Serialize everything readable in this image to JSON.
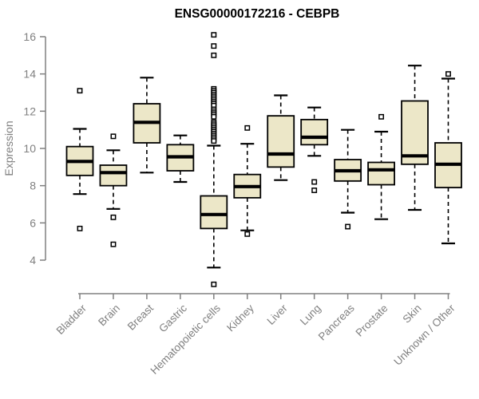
{
  "title": "ENSG00000172216 - CEBPB",
  "colors": {
    "box_fill": "#ece7c8",
    "box_stroke": "#000000",
    "median": "#000000",
    "axis": "#808080",
    "title": "#000000",
    "background": "#ffffff"
  },
  "chart_data": {
    "type": "boxplot",
    "title": "ENSG00000172216 - CEBPB",
    "xlabel": "",
    "ylabel": "Expression",
    "ylim": [
      4,
      16
    ],
    "yticks": [
      4,
      6,
      8,
      10,
      12,
      14,
      16
    ],
    "grid": false,
    "legend": "none",
    "categories": [
      "Bladder",
      "Brain",
      "Breast",
      "Gastric",
      "Hematopoietic cells",
      "Kidney",
      "Liver",
      "Lung",
      "Pancreas",
      "Prostate",
      "Skin",
      "Unknown / Other"
    ],
    "boxes": [
      {
        "label": "Bladder",
        "whisker_low": 7.55,
        "q1": 8.55,
        "median": 9.3,
        "q3": 10.1,
        "whisker_high": 11.05,
        "outliers": [
          13.1,
          5.7
        ]
      },
      {
        "label": "Brain",
        "whisker_low": 6.75,
        "q1": 8.0,
        "median": 8.7,
        "q3": 9.1,
        "whisker_high": 9.9,
        "outliers": [
          10.65,
          6.3,
          4.85
        ]
      },
      {
        "label": "Breast",
        "whisker_low": 8.7,
        "q1": 10.3,
        "median": 11.4,
        "q3": 12.4,
        "whisker_high": 13.8,
        "outliers": []
      },
      {
        "label": "Gastric",
        "whisker_low": 8.2,
        "q1": 8.8,
        "median": 9.55,
        "q3": 10.2,
        "whisker_high": 10.7,
        "outliers": []
      },
      {
        "label": "Hematopoietic cells",
        "whisker_low": 3.6,
        "q1": 5.7,
        "median": 6.45,
        "q3": 7.45,
        "whisker_high": 10.15,
        "outliers": [
          16.1,
          15.5,
          15.0,
          13.2,
          13.1,
          13.0,
          12.9,
          12.8,
          12.7,
          12.6,
          12.5,
          12.4,
          12.3,
          12.1,
          12.0,
          11.9,
          11.8,
          11.7,
          11.4,
          11.3,
          11.2,
          11.1,
          11.0,
          10.9,
          10.8,
          10.7,
          10.6,
          10.5,
          10.4,
          2.7
        ]
      },
      {
        "label": "Kidney",
        "whisker_low": 5.6,
        "q1": 7.35,
        "median": 7.95,
        "q3": 8.6,
        "whisker_high": 10.25,
        "outliers": [
          11.1,
          5.4
        ]
      },
      {
        "label": "Liver",
        "whisker_low": 8.3,
        "q1": 9.0,
        "median": 9.7,
        "q3": 11.75,
        "whisker_high": 12.85,
        "outliers": []
      },
      {
        "label": "Lung",
        "whisker_low": 9.6,
        "q1": 10.2,
        "median": 10.6,
        "q3": 11.55,
        "whisker_high": 12.2,
        "outliers": [
          8.2,
          7.75
        ]
      },
      {
        "label": "Pancreas",
        "whisker_low": 6.55,
        "q1": 8.25,
        "median": 8.8,
        "q3": 9.4,
        "whisker_high": 11.0,
        "outliers": [
          5.8
        ]
      },
      {
        "label": "Prostate",
        "whisker_low": 6.2,
        "q1": 8.05,
        "median": 8.85,
        "q3": 9.25,
        "whisker_high": 10.9,
        "outliers": [
          11.7
        ]
      },
      {
        "label": "Skin",
        "whisker_low": 6.7,
        "q1": 9.15,
        "median": 9.6,
        "q3": 12.55,
        "whisker_high": 14.45,
        "outliers": []
      },
      {
        "label": "Unknown / Other",
        "whisker_low": 4.9,
        "q1": 7.9,
        "median": 9.15,
        "q3": 10.3,
        "whisker_high": 13.75,
        "outliers": [
          14.0
        ]
      }
    ]
  }
}
